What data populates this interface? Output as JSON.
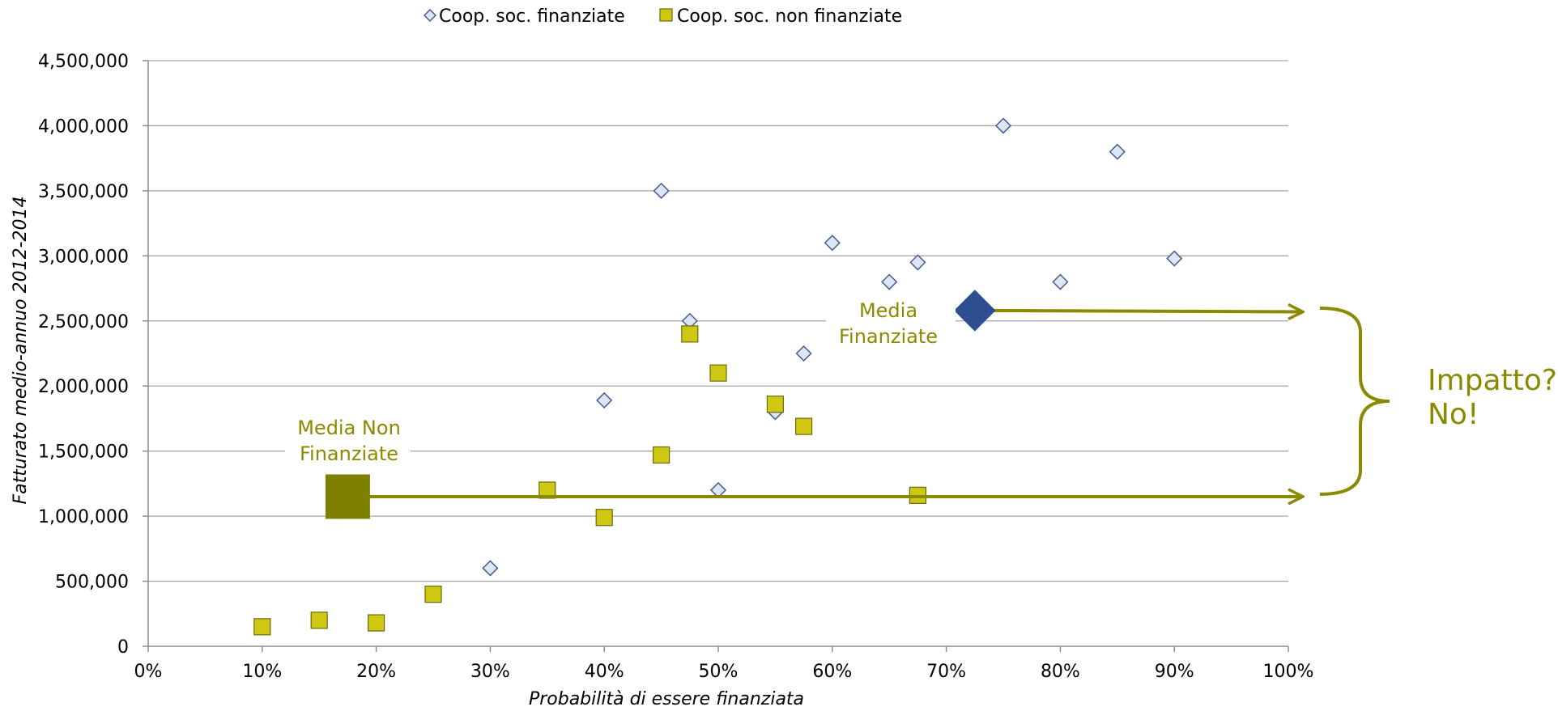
{
  "chart_data": {
    "type": "scatter",
    "title": "",
    "xlabel": "Probabilità di essere finanziata",
    "ylabel": "Fatturato medio-annuo 2012-2014",
    "xlim": [
      0,
      1
    ],
    "ylim": [
      0,
      4500000
    ],
    "x_ticks": [
      0,
      0.1,
      0.2,
      0.3,
      0.4,
      0.5,
      0.6,
      0.7,
      0.8,
      0.9,
      1.0
    ],
    "x_tick_labels": [
      "0%",
      "10%",
      "20%",
      "30%",
      "40%",
      "50%",
      "60%",
      "70%",
      "80%",
      "90%",
      "100%"
    ],
    "y_ticks": [
      0,
      500000,
      1000000,
      1500000,
      2000000,
      2500000,
      3000000,
      3500000,
      4000000,
      4500000
    ],
    "y_tick_labels": [
      "0",
      "500,000",
      "1,000,000",
      "1,500,000",
      "2,000,000",
      "2,500,000",
      "3,000,000",
      "3,500,000",
      "4,000,000",
      "4,500,000"
    ],
    "grid": "horizontal",
    "legend_position": "top",
    "series": [
      {
        "name": "Coop. soc. finanziate",
        "marker": "diamond",
        "color": "#dce6f7",
        "stroke": "#4a5a8a",
        "points": [
          {
            "x": 0.3,
            "y": 600000
          },
          {
            "x": 0.4,
            "y": 1890000
          },
          {
            "x": 0.45,
            "y": 3500000
          },
          {
            "x": 0.475,
            "y": 2500000
          },
          {
            "x": 0.5,
            "y": 1200000
          },
          {
            "x": 0.55,
            "y": 1800000
          },
          {
            "x": 0.575,
            "y": 2250000
          },
          {
            "x": 0.6,
            "y": 3100000
          },
          {
            "x": 0.65,
            "y": 2800000
          },
          {
            "x": 0.675,
            "y": 2950000
          },
          {
            "x": 0.75,
            "y": 4000000
          },
          {
            "x": 0.8,
            "y": 2800000
          },
          {
            "x": 0.85,
            "y": 3800000
          },
          {
            "x": 0.9,
            "y": 2980000
          }
        ]
      },
      {
        "name": "Coop. soc. non finanziate",
        "marker": "square",
        "color": "#cfc812",
        "stroke": "#6b6a10",
        "points": [
          {
            "x": 0.1,
            "y": 150000
          },
          {
            "x": 0.15,
            "y": 200000
          },
          {
            "x": 0.2,
            "y": 180000
          },
          {
            "x": 0.25,
            "y": 400000
          },
          {
            "x": 0.35,
            "y": 1200000
          },
          {
            "x": 0.4,
            "y": 990000
          },
          {
            "x": 0.45,
            "y": 1470000
          },
          {
            "x": 0.475,
            "y": 2400000
          },
          {
            "x": 0.5,
            "y": 2100000
          },
          {
            "x": 0.55,
            "y": 1860000
          },
          {
            "x": 0.575,
            "y": 1690000
          },
          {
            "x": 0.675,
            "y": 1160000
          }
        ]
      }
    ],
    "means": [
      {
        "label_lines": [
          "Media",
          "Finanziate"
        ],
        "x": 0.725,
        "y": 2580000,
        "marker": "diamond",
        "color": "#2e4f8f"
      },
      {
        "label_lines": [
          "Media Non",
          "Finanziate"
        ],
        "x": 0.175,
        "y": 1150000,
        "marker": "square",
        "color": "#7f7f00"
      }
    ],
    "annotation": {
      "lines": [
        "Impatto?",
        "No!"
      ],
      "color": "#8a8a00"
    }
  }
}
